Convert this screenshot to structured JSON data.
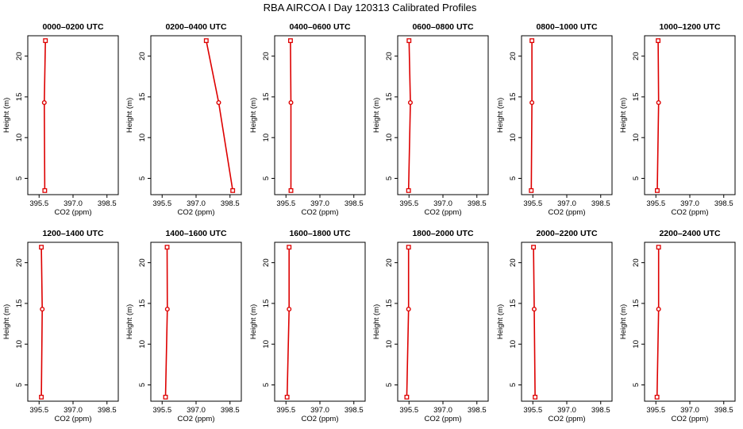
{
  "figure": {
    "title": "RBA AIRCOA I  Day 120313  Calibrated Profiles"
  },
  "colors": {
    "line": "#dd0000",
    "axis": "#000000",
    "background": "#ffffff"
  },
  "chart_data": [
    {
      "type": "line",
      "title": "0000–0200 UTC",
      "xlabel": "CO2 (ppm)",
      "ylabel": "Height (m)",
      "xlim": [
        395.0,
        399.0
      ],
      "ylim": [
        3.0,
        22.5
      ],
      "xticks": [
        "395.5",
        "397.0",
        "398.5"
      ],
      "yticks": [
        "5",
        "10",
        "15",
        "20"
      ],
      "heights": [
        3.5,
        14.3,
        21.9
      ],
      "values": [
        395.75,
        395.73,
        395.78
      ]
    },
    {
      "type": "line",
      "title": "0200–0400 UTC",
      "xlabel": "CO2 (ppm)",
      "ylabel": "Height (m)",
      "xlim": [
        395.0,
        399.0
      ],
      "ylim": [
        3.0,
        22.5
      ],
      "xticks": [
        "395.5",
        "397.0",
        "398.5"
      ],
      "yticks": [
        "5",
        "10",
        "15",
        "20"
      ],
      "heights": [
        3.5,
        14.3,
        21.9
      ],
      "values": [
        398.62,
        398.0,
        397.45
      ]
    },
    {
      "type": "line",
      "title": "0400–0600 UTC",
      "xlabel": "CO2 (ppm)",
      "ylabel": "Height (m)",
      "xlim": [
        395.0,
        399.0
      ],
      "ylim": [
        3.0,
        22.5
      ],
      "xticks": [
        "395.5",
        "397.0",
        "398.5"
      ],
      "yticks": [
        "5",
        "10",
        "15",
        "20"
      ],
      "heights": [
        3.5,
        14.3,
        21.9
      ],
      "values": [
        395.72,
        395.72,
        395.7
      ]
    },
    {
      "type": "line",
      "title": "0600–0800 UTC",
      "xlabel": "CO2 (ppm)",
      "ylabel": "Height (m)",
      "xlim": [
        395.0,
        399.0
      ],
      "ylim": [
        3.0,
        22.5
      ],
      "xticks": [
        "395.5",
        "397.0",
        "398.5"
      ],
      "yticks": [
        "5",
        "10",
        "15",
        "20"
      ],
      "heights": [
        3.5,
        14.3,
        21.9
      ],
      "values": [
        395.48,
        395.56,
        395.5
      ]
    },
    {
      "type": "line",
      "title": "0800–1000 UTC",
      "xlabel": "CO2 (ppm)",
      "ylabel": "Height (m)",
      "xlim": [
        395.0,
        399.0
      ],
      "ylim": [
        3.0,
        22.5
      ],
      "xticks": [
        "395.5",
        "397.0",
        "398.5"
      ],
      "yticks": [
        "5",
        "10",
        "15",
        "20"
      ],
      "heights": [
        3.5,
        14.3,
        21.9
      ],
      "values": [
        395.43,
        395.46,
        395.46
      ]
    },
    {
      "type": "line",
      "title": "1000–1200 UTC",
      "xlabel": "CO2 (ppm)",
      "ylabel": "Height (m)",
      "xlim": [
        395.0,
        399.0
      ],
      "ylim": [
        3.0,
        22.5
      ],
      "xticks": [
        "395.5",
        "397.0",
        "398.5"
      ],
      "yticks": [
        "5",
        "10",
        "15",
        "20"
      ],
      "heights": [
        3.5,
        14.3,
        21.9
      ],
      "values": [
        395.56,
        395.62,
        395.6
      ]
    },
    {
      "type": "line",
      "title": "1200–1400 UTC",
      "xlabel": "CO2 (ppm)",
      "ylabel": "Height (m)",
      "xlim": [
        395.0,
        399.0
      ],
      "ylim": [
        3.0,
        22.5
      ],
      "xticks": [
        "395.5",
        "397.0",
        "398.5"
      ],
      "yticks": [
        "5",
        "10",
        "15",
        "20"
      ],
      "heights": [
        3.5,
        14.3,
        21.9
      ],
      "values": [
        395.6,
        395.64,
        395.6
      ]
    },
    {
      "type": "line",
      "title": "1400–1600 UTC",
      "xlabel": "CO2 (ppm)",
      "ylabel": "Height (m)",
      "xlim": [
        395.0,
        399.0
      ],
      "ylim": [
        3.0,
        22.5
      ],
      "xticks": [
        "395.5",
        "397.0",
        "398.5"
      ],
      "yticks": [
        "5",
        "10",
        "15",
        "20"
      ],
      "heights": [
        3.5,
        14.3,
        21.9
      ],
      "values": [
        395.65,
        395.73,
        395.72
      ]
    },
    {
      "type": "line",
      "title": "1600–1800 UTC",
      "xlabel": "CO2 (ppm)",
      "ylabel": "Height (m)",
      "xlim": [
        395.0,
        399.0
      ],
      "ylim": [
        3.0,
        22.5
      ],
      "xticks": [
        "395.5",
        "397.0",
        "398.5"
      ],
      "yticks": [
        "5",
        "10",
        "15",
        "20"
      ],
      "heights": [
        3.5,
        14.3,
        21.9
      ],
      "values": [
        395.55,
        395.64,
        395.64
      ]
    },
    {
      "type": "line",
      "title": "1800–2000 UTC",
      "xlabel": "CO2 (ppm)",
      "ylabel": "Height (m)",
      "xlim": [
        395.0,
        399.0
      ],
      "ylim": [
        3.0,
        22.5
      ],
      "xticks": [
        "395.5",
        "397.0",
        "398.5"
      ],
      "yticks": [
        "5",
        "10",
        "15",
        "20"
      ],
      "heights": [
        3.5,
        14.3,
        21.9
      ],
      "values": [
        395.4,
        395.48,
        395.48
      ]
    },
    {
      "type": "line",
      "title": "2000–2200 UTC",
      "xlabel": "CO2 (ppm)",
      "ylabel": "Height (m)",
      "xlim": [
        395.0,
        399.0
      ],
      "ylim": [
        3.0,
        22.5
      ],
      "xticks": [
        "395.5",
        "397.0",
        "398.5"
      ],
      "yticks": [
        "5",
        "10",
        "15",
        "20"
      ],
      "heights": [
        3.5,
        14.3,
        21.9
      ],
      "values": [
        395.6,
        395.56,
        395.53
      ]
    },
    {
      "type": "line",
      "title": "2200–2400 UTC",
      "xlabel": "CO2 (ppm)",
      "ylabel": "Height (m)",
      "xlim": [
        395.0,
        399.0
      ],
      "ylim": [
        3.0,
        22.5
      ],
      "xticks": [
        "395.5",
        "397.0",
        "398.5"
      ],
      "yticks": [
        "5",
        "10",
        "15",
        "20"
      ],
      "heights": [
        3.5,
        14.3,
        21.9
      ],
      "values": [
        395.55,
        395.62,
        395.62
      ]
    }
  ]
}
